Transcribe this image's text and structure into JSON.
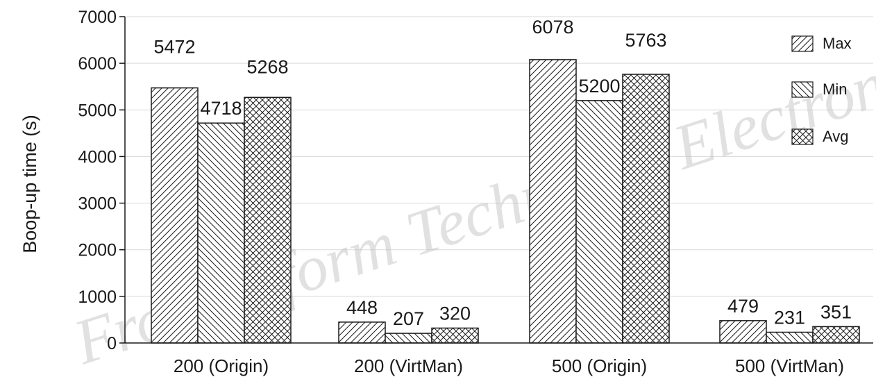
{
  "colors": {
    "ink": "#1a1a1a",
    "grid": "#d9d9d9",
    "watermark": "#bdbdbd"
  },
  "watermark": "Front Inform Technol & Electron",
  "chart_data": {
    "type": "bar",
    "title": "",
    "xlabel": "",
    "ylabel": "Boop-up time (s)",
    "ylim": [
      0,
      7000
    ],
    "yticks": [
      "0",
      "1000",
      "2000",
      "3000",
      "4000",
      "5000",
      "6000",
      "7000"
    ],
    "grid": "horizontal",
    "legend_position": "top-right",
    "categories": [
      "200 (Origin)",
      "200 (VirtMan)",
      "500 (Origin)",
      "500 (VirtMan)"
    ],
    "series": [
      {
        "name": "Max",
        "pattern": "hatch-forward",
        "values": [
          5472,
          448,
          6078,
          479
        ]
      },
      {
        "name": "Min",
        "pattern": "hatch-backward",
        "values": [
          4718,
          207,
          5200,
          231
        ]
      },
      {
        "name": "Avg",
        "pattern": "cross-hatch",
        "values": [
          5268,
          320,
          5763,
          351
        ]
      }
    ],
    "data_labels": [
      [
        "5472",
        "4718",
        "5268"
      ],
      [
        "448",
        "207",
        "320"
      ],
      [
        "6078",
        "5200",
        "5763"
      ],
      [
        "479",
        "231",
        "351"
      ]
    ]
  }
}
